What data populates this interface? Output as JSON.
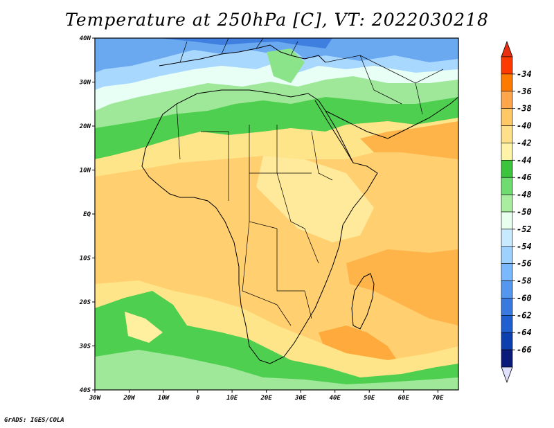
{
  "title": "Temperature at 250hPa [C], VT: 2022030218",
  "credit": "GrADS: IGES/COLA",
  "map": {
    "lon_ticks": [
      "30W",
      "20W",
      "10W",
      "0",
      "10E",
      "20E",
      "30E",
      "40E",
      "50E",
      "60E",
      "70E"
    ],
    "lat_ticks": [
      "40N",
      "30N",
      "20N",
      "10N",
      "EQ",
      "10S",
      "20S",
      "30S",
      "40S"
    ]
  },
  "colorbar": {
    "labels": [
      "-34",
      "-36",
      "-38",
      "-40",
      "-42",
      "-44",
      "-46",
      "-48",
      "-50",
      "-52",
      "-54",
      "-56",
      "-58",
      "-60",
      "-62",
      "-64",
      "-66"
    ],
    "colors": [
      "#ff3a00",
      "#ff7a00",
      "#ffa64d",
      "#ffc866",
      "#ffe08a",
      "#fff3a8",
      "#3cc43c",
      "#6fdc6f",
      "#a9eea0",
      "#e8fff0",
      "#c8eaff",
      "#9fd1ff",
      "#7ab8ff",
      "#5597ee",
      "#3a7ae0",
      "#1f5fd0",
      "#0b3fb0",
      "#0a1a7a"
    ],
    "top_color": "#e83010",
    "bottom_color": "#e0e0ff"
  }
}
